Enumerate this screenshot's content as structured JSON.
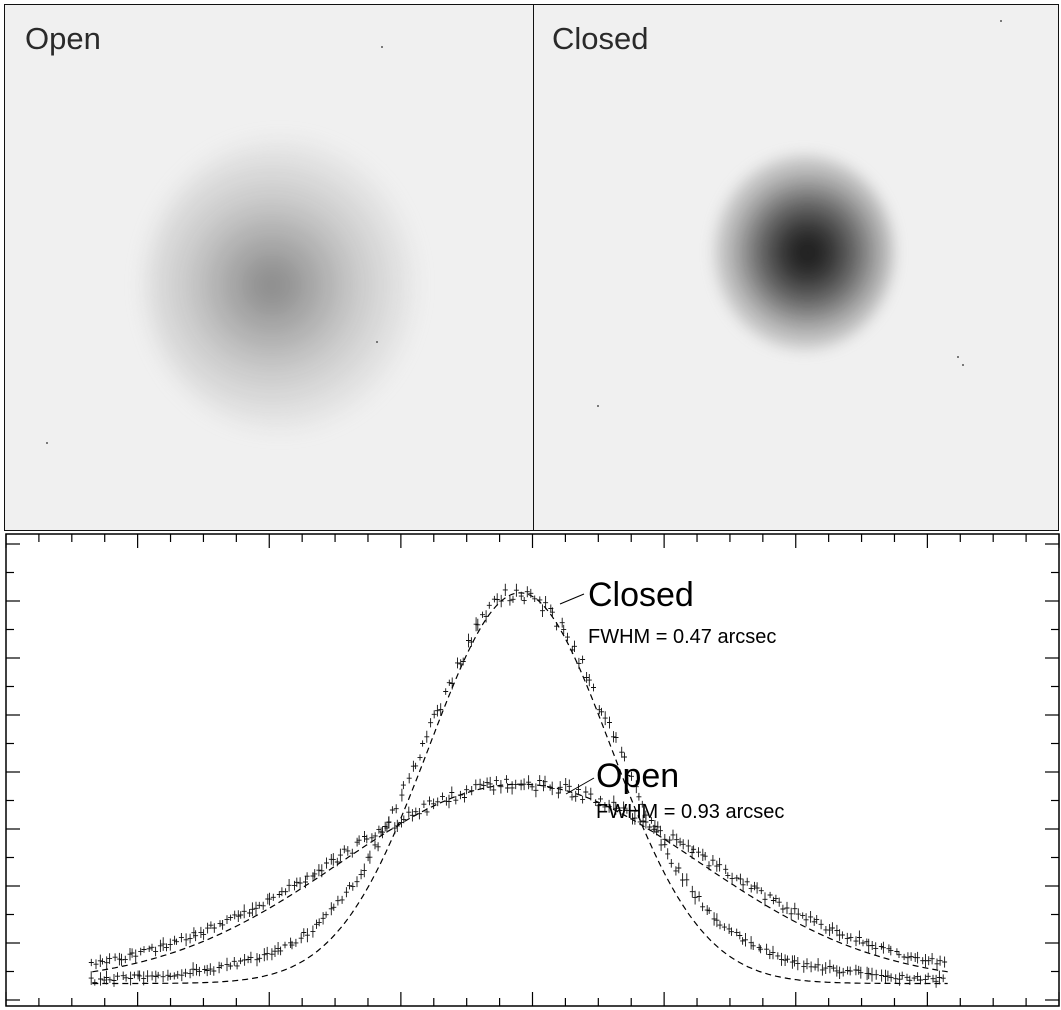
{
  "panels": [
    {
      "label": "Open"
    },
    {
      "label": "Closed"
    }
  ],
  "chart_data": {
    "type": "scatter",
    "x_range": [
      -1.0,
      1.0
    ],
    "y_range": [
      0,
      1.0
    ],
    "series": [
      {
        "name": "Closed",
        "fwhm_text": "FWHM = 0.47 arcsec",
        "peak": 0.93,
        "baseline": 0.042,
        "fwhm": 0.47,
        "fit_line_style": "dashed"
      },
      {
        "name": "Open",
        "fwhm_text": "FWHM = 0.93 arcsec",
        "peak": 0.495,
        "baseline": 0.042,
        "fwhm": 0.93,
        "fit_line_style": "dashed"
      }
    ],
    "grid": false
  }
}
